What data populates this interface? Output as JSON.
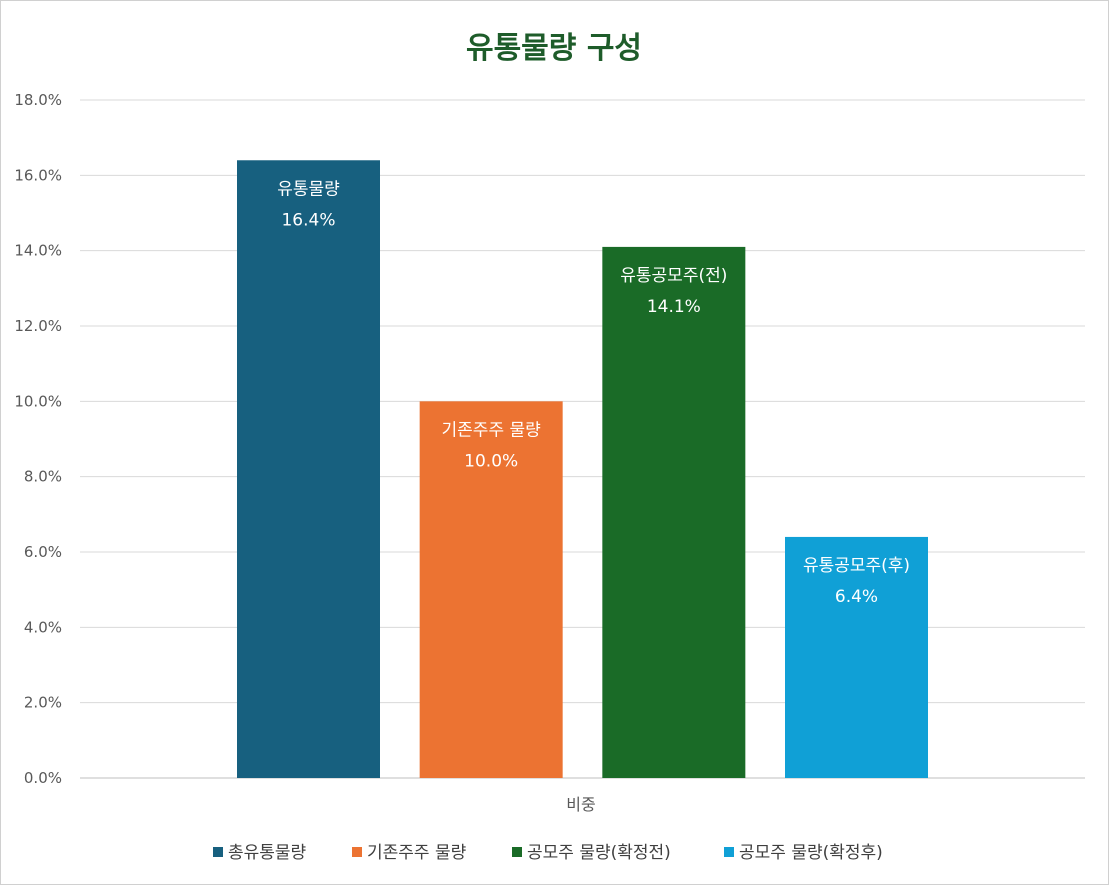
{
  "chart_data": {
    "type": "bar",
    "title": "유통물량 구성",
    "xlabel": "",
    "ylabel": "",
    "categories": [
      "비중"
    ],
    "ylim": [
      0,
      0.18
    ],
    "ytick_step": 0.02,
    "ytick_format": "percent_1dp",
    "grid": true,
    "legend_position": "bottom",
    "series": [
      {
        "name": "총유통물량",
        "values": [
          0.164
        ],
        "color": "#17607f",
        "data_label": [
          "유통물량",
          "16.4%"
        ]
      },
      {
        "name": "기존주주 물량",
        "values": [
          0.1
        ],
        "color": "#ec7332",
        "data_label": [
          "기존주주 물량",
          "10.0%"
        ]
      },
      {
        "name": "공모주 물량(확정전)",
        "values": [
          0.141
        ],
        "color": "#1a6b27",
        "data_label": [
          "유통공모주(전)",
          "14.1%"
        ]
      },
      {
        "name": "공모주 물량(확정후)",
        "values": [
          0.064
        ],
        "color": "#10a0d6",
        "data_label": [
          "유통공모주(후)",
          "6.4%"
        ]
      }
    ]
  }
}
